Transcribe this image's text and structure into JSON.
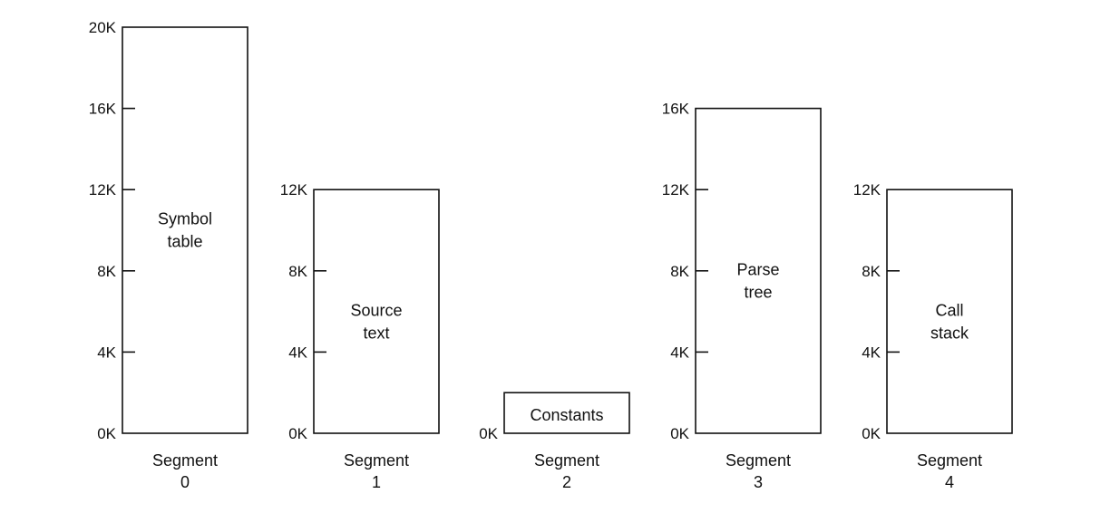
{
  "segments": [
    {
      "caption": [
        "Segment",
        "0"
      ],
      "content": [
        "Symbol",
        "table"
      ],
      "size_k": 20,
      "ticks": [
        "0K",
        "4K",
        "8K",
        "12K",
        "16K",
        "20K"
      ]
    },
    {
      "caption": [
        "Segment",
        "1"
      ],
      "content": [
        "Source",
        "text"
      ],
      "size_k": 12,
      "ticks": [
        "0K",
        "4K",
        "8K",
        "12K"
      ]
    },
    {
      "caption": [
        "Segment",
        "2"
      ],
      "content": [
        "Constants"
      ],
      "size_k": 2,
      "ticks": [
        "0K"
      ]
    },
    {
      "caption": [
        "Segment",
        "3"
      ],
      "content": [
        "Parse",
        "tree"
      ],
      "size_k": 16,
      "ticks": [
        "0K",
        "4K",
        "8K",
        "12K",
        "16K"
      ]
    },
    {
      "caption": [
        "Segment",
        "4"
      ],
      "content": [
        "Call",
        "stack"
      ],
      "size_k": 12,
      "ticks": [
        "0K",
        "4K",
        "8K",
        "12K"
      ]
    }
  ],
  "colors": {
    "line": "#111111",
    "text": "#111111",
    "background": "#ffffff"
  }
}
